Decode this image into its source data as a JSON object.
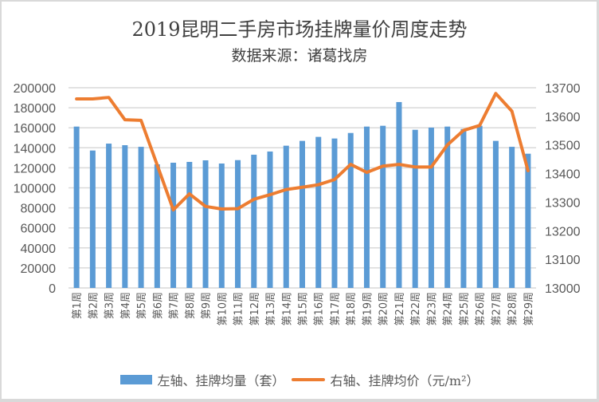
{
  "chart_data": {
    "type": "bar+line",
    "title": "2019昆明二手房市场挂牌量价周度走势",
    "subtitle": "数据来源：诸葛找房",
    "categories": [
      "第1周",
      "第2周",
      "第3周",
      "第4周",
      "第5周",
      "第6周",
      "第7周",
      "第8周",
      "第9周",
      "第10周",
      "第11周",
      "第12周",
      "第13周",
      "第14周",
      "第15周",
      "第16周",
      "第17周",
      "第18周",
      "第19周",
      "第20周",
      "第21周",
      "第22周",
      "第23周",
      "第24周",
      "第25周",
      "第26周",
      "第27周",
      "第28周",
      "第29周"
    ],
    "series": [
      {
        "name": "左轴、挂牌均量（套）",
        "type": "bar",
        "axis": "left",
        "color": "#5b9bd5",
        "values": [
          161200,
          137300,
          144200,
          142600,
          141000,
          123500,
          125100,
          125900,
          127500,
          124300,
          127700,
          133100,
          136300,
          142100,
          146900,
          150900,
          149300,
          154800,
          161200,
          162000,
          185700,
          158000,
          160200,
          161200,
          158800,
          162000,
          146900,
          141000,
          134100
        ]
      },
      {
        "name": "右轴、挂牌均价（元/m²）",
        "type": "line",
        "axis": "right",
        "color": "#ed7d31",
        "values": [
          13661,
          13661,
          13666,
          13588,
          13586,
          13430,
          13273,
          13329,
          13285,
          13276,
          13277,
          13310,
          13326,
          13344,
          13352,
          13361,
          13379,
          13432,
          13404,
          13426,
          13432,
          13423,
          13423,
          13500,
          13551,
          13568,
          13680,
          13618,
          13410
        ]
      }
    ],
    "y_left": {
      "range": [
        0,
        200000
      ],
      "ticks": [
        "0",
        "20000",
        "40000",
        "60000",
        "80000",
        "100000",
        "120000",
        "140000",
        "160000",
        "180000",
        "200000"
      ]
    },
    "y_right": {
      "range": [
        13000,
        13700
      ],
      "ticks": [
        "13000",
        "13100",
        "13200",
        "13300",
        "13400",
        "13500",
        "13600",
        "13700"
      ]
    },
    "grid": true,
    "legend_position": "bottom"
  }
}
